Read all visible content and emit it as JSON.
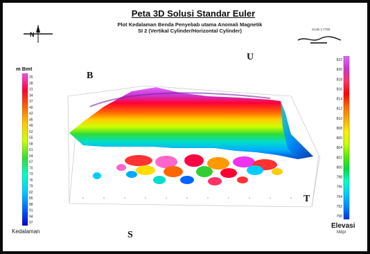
{
  "map": {
    "title": "Peta 3D Solusi Standar Euler",
    "subtitle_line1": "Plot Kedalaman Benda Penyebab utama Anomali Magnetik",
    "subtitle_line2": "SI 2 (Vertikal Cylinder/Horizontal Cylinder)",
    "north_letter": "N",
    "scale_label": "Scale 1:7750",
    "directions": {
      "b": "B",
      "u": "U",
      "t": "T",
      "s": "S"
    }
  },
  "depth_legend": {
    "title": "m Bmt",
    "footer": "Kedalaman",
    "ticks": [
      "25",
      "28",
      "31",
      "34",
      "37",
      "40",
      "43",
      "46",
      "49",
      "52",
      "55",
      "58",
      "61",
      "64",
      "67",
      "70",
      "73",
      "76",
      "79",
      "82",
      "85",
      "88",
      "91",
      "94",
      "97"
    ],
    "colors": [
      "#f04ff0",
      "#ff0033",
      "#ff6600",
      "#ffcc00",
      "#ccff00",
      "#33dd33",
      "#00ffcc",
      "#00ccff",
      "#0066ff",
      "#0000cc"
    ]
  },
  "elevation_legend": {
    "title": "Elevasi",
    "unit": "Mdpl",
    "ticks": [
      "822",
      "820",
      "818",
      "816",
      "814",
      "812",
      "810",
      "808",
      "806",
      "804",
      "802",
      "800",
      "798",
      "796",
      "794",
      "792",
      "790"
    ],
    "colors": [
      "#e066ff",
      "#cc33cc",
      "#ff3366",
      "#ff0000",
      "#ff6600",
      "#ffaa00",
      "#ffee00",
      "#ccff00",
      "#55ee00",
      "#00dd44",
      "#00ffcc",
      "#00ccff",
      "#0088ff",
      "#0033dd"
    ]
  }
}
